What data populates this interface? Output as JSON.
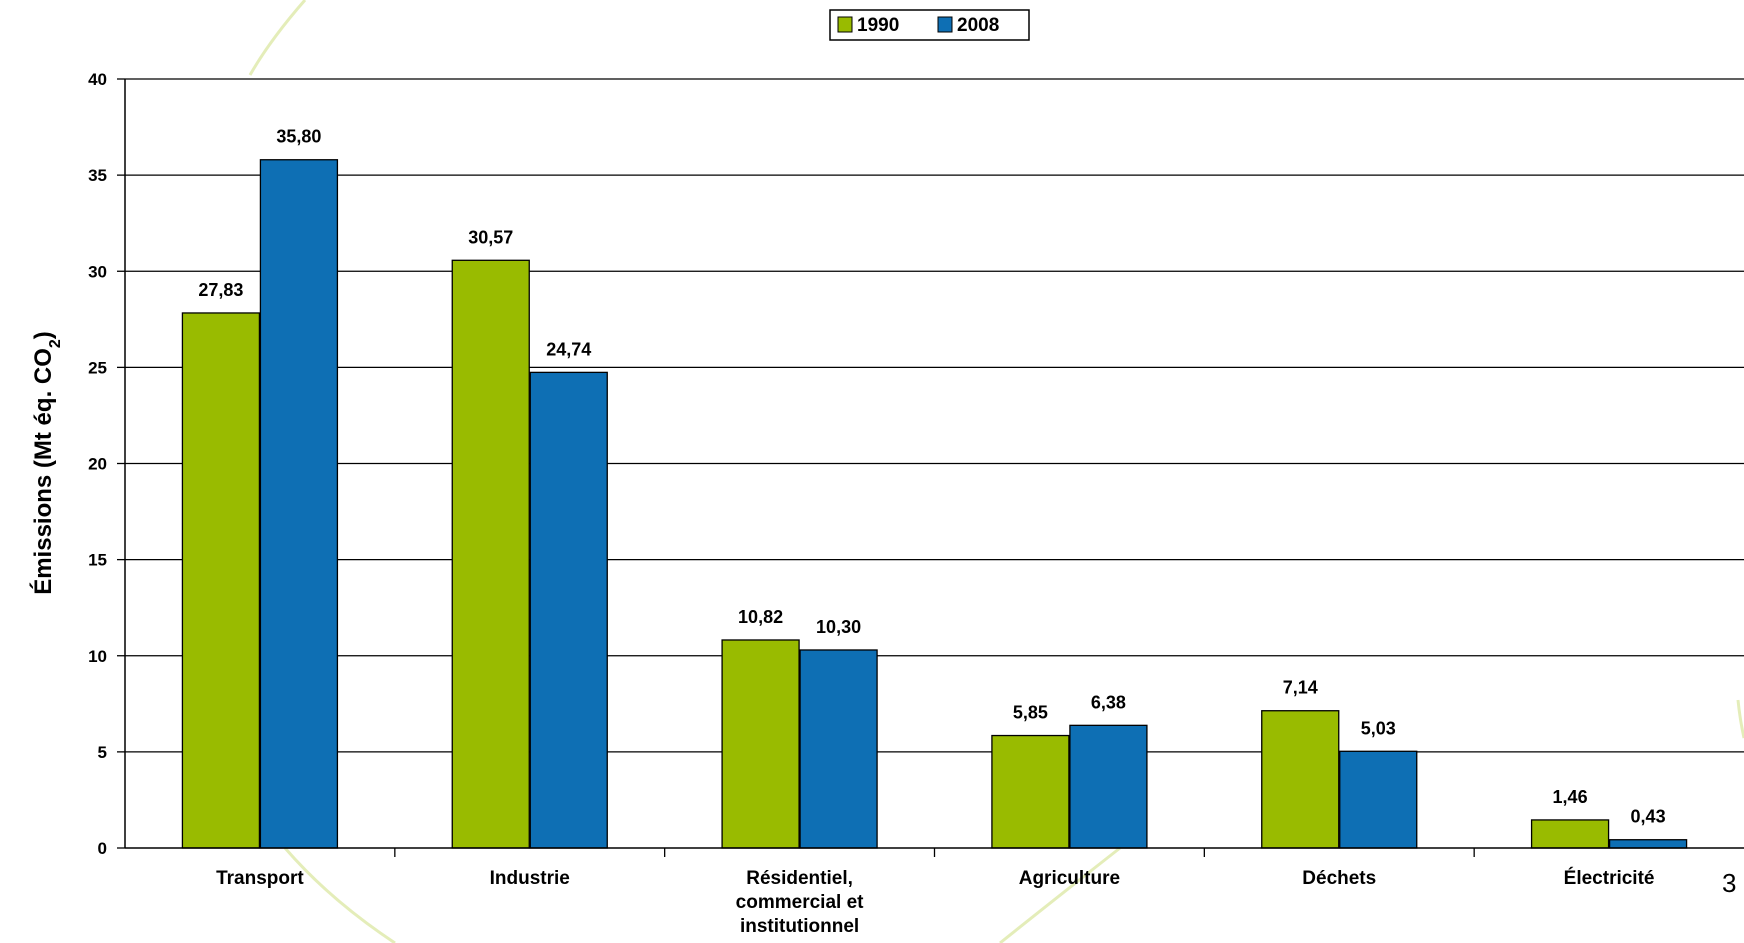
{
  "page_number": "3",
  "chart_data": {
    "type": "bar",
    "title": "",
    "ylabel": "Émissions (Mt éq. CO",
    "ylabel_sub": "2",
    "ylabel_tail": ")",
    "xlabel": "",
    "ylim": [
      0,
      40
    ],
    "yticks": [
      "0",
      "5",
      "10",
      "15",
      "20",
      "25",
      "30",
      "35",
      "40"
    ],
    "grid": true,
    "legend_position": "top-center",
    "categories": [
      [
        "Transport"
      ],
      [
        "Industrie"
      ],
      [
        "Résidentiel,",
        "commercial et",
        "institutionnel"
      ],
      [
        "Agriculture"
      ],
      [
        "Déchets"
      ],
      [
        "Électricité"
      ]
    ],
    "series": [
      {
        "name": "1990",
        "color": "#99bb00",
        "values": [
          27.83,
          30.57,
          10.82,
          5.85,
          7.14,
          1.46
        ],
        "labels": [
          "27,83",
          "30,57",
          "10,82",
          "5,85",
          "7,14",
          "1,46"
        ]
      },
      {
        "name": "2008",
        "color": "#0e6fb4",
        "values": [
          35.8,
          24.74,
          10.3,
          6.38,
          5.03,
          0.43
        ],
        "labels": [
          "35,80",
          "24,74",
          "10,30",
          "6,38",
          "5,03",
          "0,43"
        ]
      }
    ]
  }
}
